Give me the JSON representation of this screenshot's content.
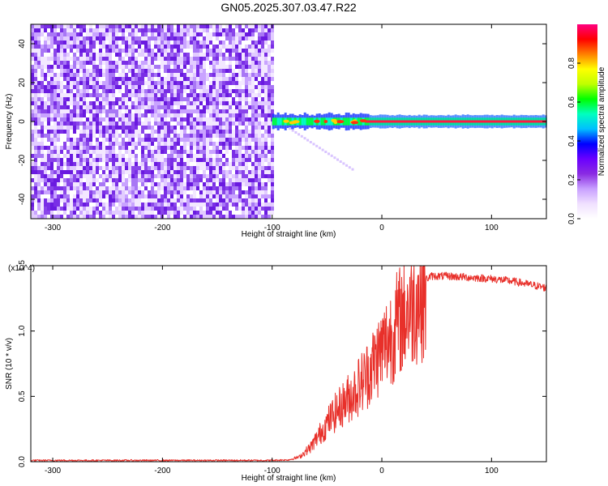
{
  "title": "GN05.2025.307.03.47.R22",
  "chart_data": [
    {
      "type": "heatmap",
      "title": "GN05.2025.307.03.47.R22",
      "xlabel": "Height of straight line (km)",
      "ylabel": "Frequency (Hz)",
      "xlim": [
        -320,
        150
      ],
      "ylim": [
        -50,
        50
      ],
      "xticks": [
        -300,
        -200,
        -100,
        0,
        100
      ],
      "yticks": [
        -40,
        -20,
        0,
        20,
        40
      ],
      "noise_region_x": [
        -320,
        -100
      ],
      "band_region_x": [
        -100,
        150
      ],
      "band_center_frequency": 0,
      "band_halfwidth_hz": 3,
      "colorbar": {
        "label": "Normalized spectral amplitude",
        "range": [
          0,
          1
        ],
        "ticks": [
          "0.0",
          "0.2",
          "0.4",
          "0.6",
          "0.8"
        ],
        "colors": [
          "#ffffff",
          "#f0e0ff",
          "#c8a0ff",
          "#8a2be2",
          "#6a00ff",
          "#0000ff",
          "#00bfff",
          "#00ffbf",
          "#00ff00",
          "#bfff00",
          "#ffff00",
          "#ff8000",
          "#ff0000",
          "#ff0080"
        ]
      },
      "grid": false
    },
    {
      "type": "line",
      "xlabel": "Height of straight line (km)",
      "ylabel": "SNR (10 * v/v)",
      "y_multiplier": "(x10^4)",
      "xlim": [
        -320,
        150
      ],
      "ylim": [
        0,
        1.5
      ],
      "xticks": [
        -300,
        -200,
        -100,
        0,
        100
      ],
      "yticks": [
        "0.0",
        "0.5",
        "1.0",
        "1.5"
      ],
      "color": "#e8302a",
      "series": [
        {
          "x": [
            -320,
            -100,
            -85,
            -75,
            -65,
            -55,
            -45,
            -35,
            -25,
            -15,
            -5,
            5,
            15,
            25,
            35,
            45,
            60,
            80,
            100,
            120,
            150
          ],
          "values": [
            0.01,
            0.01,
            0.015,
            0.04,
            0.12,
            0.25,
            0.38,
            0.48,
            0.58,
            0.7,
            0.85,
            1.0,
            1.15,
            1.28,
            1.37,
            1.42,
            1.42,
            1.41,
            1.4,
            1.38,
            1.33
          ]
        }
      ],
      "grid": false
    }
  ]
}
